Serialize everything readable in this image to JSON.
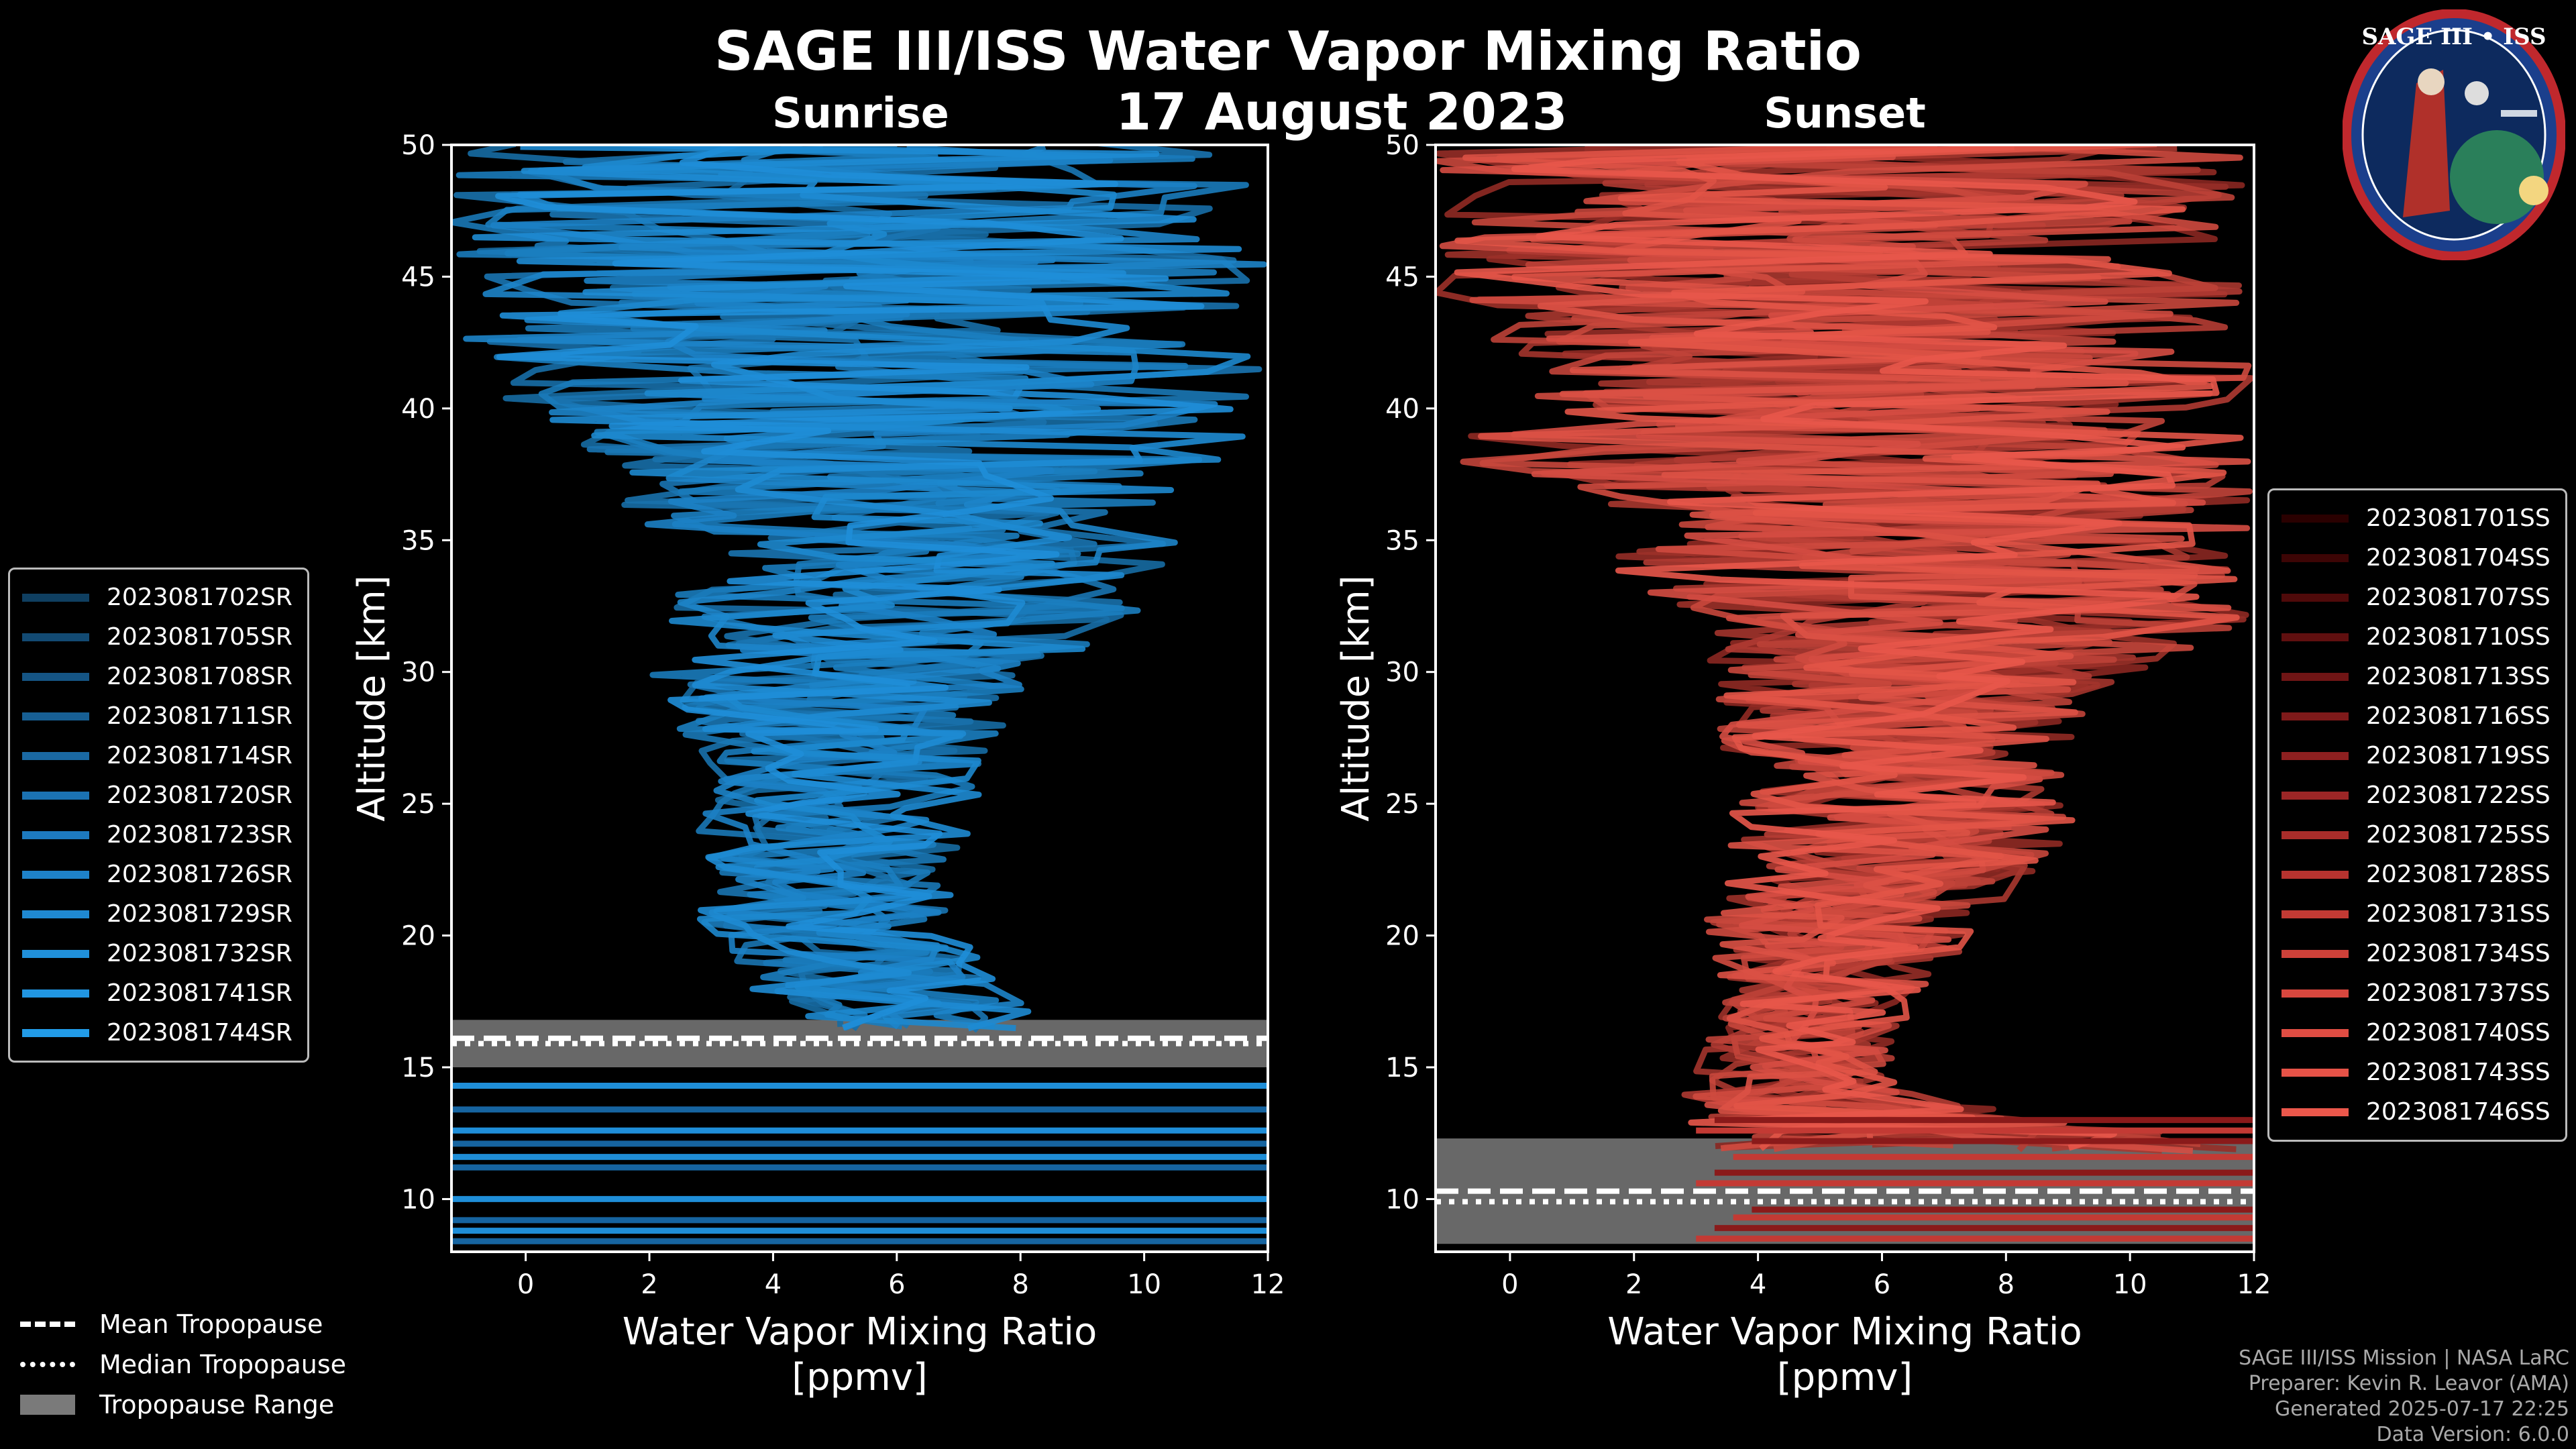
{
  "title": "SAGE III/ISS Water Vapor Mixing Ratio",
  "date": "17 August 2023",
  "logo": {
    "text": "SAGE III • ISS",
    "colors": [
      "#1b3f8c",
      "#c0282d",
      "#ffffff"
    ]
  },
  "legend_tropopause": {
    "mean": "Mean Tropopause",
    "median": "Median Tropopause",
    "range": "Tropopause Range"
  },
  "credits": {
    "line1": "SAGE III/ISS Mission | NASA LaRC",
    "line2": "Preparer: Kevin R. Leavor (AMA)",
    "line3": "Generated 2025-07-17 22:25",
    "line4": "Data Version: 6.0.0"
  },
  "chart_data": [
    {
      "type": "line",
      "title": "Sunrise",
      "xlabel": "Water Vapor Mixing Ratio\n[ppmv]",
      "xlabel_line1": "Water Vapor Mixing Ratio",
      "xlabel_line2": "[ppmv]",
      "ylabel": "Altitude [km]",
      "xlim": [
        -1.2,
        12
      ],
      "ylim": [
        8,
        50
      ],
      "xticks": [
        0,
        2,
        4,
        6,
        8,
        10,
        12
      ],
      "yticks": [
        10,
        15,
        20,
        25,
        30,
        35,
        40,
        45,
        50
      ],
      "color": "#1f8ed8",
      "tropopause": {
        "mean": 16.1,
        "median": 15.9,
        "range": [
          15.0,
          16.8
        ]
      },
      "profile_envelope": [
        {
          "alt": 16.5,
          "min": 4.8,
          "max": 8.8
        },
        {
          "alt": 18,
          "min": 3.6,
          "max": 7.8
        },
        {
          "alt": 20,
          "min": 2.5,
          "max": 7.0
        },
        {
          "alt": 22,
          "min": 2.9,
          "max": 7.0
        },
        {
          "alt": 24,
          "min": 2.5,
          "max": 7.2
        },
        {
          "alt": 26,
          "min": 3.0,
          "max": 7.4
        },
        {
          "alt": 28,
          "min": 2.4,
          "max": 7.8
        },
        {
          "alt": 30,
          "min": 2.0,
          "max": 8.6
        },
        {
          "alt": 32,
          "min": 2.2,
          "max": 9.8
        },
        {
          "alt": 34,
          "min": 2.5,
          "max": 10.4
        },
        {
          "alt": 36,
          "min": 1.7,
          "max": 10.6
        },
        {
          "alt": 38,
          "min": 1.0,
          "max": 11.2
        },
        {
          "alt": 40,
          "min": -0.4,
          "max": 12.0
        },
        {
          "alt": 43,
          "min": -1.2,
          "max": 12.0
        },
        {
          "alt": 50,
          "min": -1.2,
          "max": 12.0
        }
      ],
      "series": [
        {
          "name": "2023081702SR"
        },
        {
          "name": "2023081705SR"
        },
        {
          "name": "2023081708SR"
        },
        {
          "name": "2023081711SR"
        },
        {
          "name": "2023081714SR"
        },
        {
          "name": "2023081720SR"
        },
        {
          "name": "2023081723SR"
        },
        {
          "name": "2023081726SR"
        },
        {
          "name": "2023081729SR"
        },
        {
          "name": "2023081732SR"
        },
        {
          "name": "2023081741SR"
        },
        {
          "name": "2023081744SR"
        }
      ],
      "legend_colors": [
        "#0f3f61",
        "#124a73",
        "#155585",
        "#175f94",
        "#1a69a3",
        "#1b72b2",
        "#1d7abf",
        "#1e82c9",
        "#1f89d2",
        "#2090da",
        "#2196e2",
        "#229ce8"
      ]
    },
    {
      "type": "line",
      "title": "Sunset",
      "xlabel": "Water Vapor Mixing Ratio\n[ppmv]",
      "xlabel_line1": "Water Vapor Mixing Ratio",
      "xlabel_line2": "[ppmv]",
      "ylabel": "Altitude [km]",
      "xlim": [
        -1.2,
        12
      ],
      "ylim": [
        8,
        50
      ],
      "xticks": [
        0,
        2,
        4,
        6,
        8,
        10,
        12
      ],
      "yticks": [
        10,
        15,
        20,
        25,
        30,
        35,
        40,
        45,
        50
      ],
      "color": "#e8574a",
      "tropopause": {
        "mean": 10.3,
        "median": 9.9,
        "range": [
          8.3,
          12.3
        ]
      },
      "profile_envelope": [
        {
          "alt": 12,
          "min": 3.0,
          "max": 12.0
        },
        {
          "alt": 14,
          "min": 2.8,
          "max": 6.5
        },
        {
          "alt": 16,
          "min": 3.2,
          "max": 6.2
        },
        {
          "alt": 18,
          "min": 3.5,
          "max": 6.8
        },
        {
          "alt": 20,
          "min": 3.0,
          "max": 7.5
        },
        {
          "alt": 22,
          "min": 3.5,
          "max": 8.2
        },
        {
          "alt": 24,
          "min": 3.5,
          "max": 9.2
        },
        {
          "alt": 26,
          "min": 3.8,
          "max": 9.0
        },
        {
          "alt": 28,
          "min": 2.9,
          "max": 9.2
        },
        {
          "alt": 30,
          "min": 3.2,
          "max": 10.4
        },
        {
          "alt": 32,
          "min": 2.9,
          "max": 12.0
        },
        {
          "alt": 34,
          "min": 1.5,
          "max": 12.0
        },
        {
          "alt": 36,
          "min": 2.4,
          "max": 12.0
        },
        {
          "alt": 38,
          "min": -1.2,
          "max": 12.0
        },
        {
          "alt": 41,
          "min": 0.5,
          "max": 12.0
        },
        {
          "alt": 44,
          "min": -1.2,
          "max": 12.0
        },
        {
          "alt": 50,
          "min": -1.2,
          "max": 12.0
        }
      ],
      "series": [
        {
          "name": "2023081701SS"
        },
        {
          "name": "2023081704SS"
        },
        {
          "name": "2023081707SS"
        },
        {
          "name": "2023081710SS"
        },
        {
          "name": "2023081713SS"
        },
        {
          "name": "2023081716SS"
        },
        {
          "name": "2023081719SS"
        },
        {
          "name": "2023081722SS"
        },
        {
          "name": "2023081725SS"
        },
        {
          "name": "2023081728SS"
        },
        {
          "name": "2023081731SS"
        },
        {
          "name": "2023081734SS"
        },
        {
          "name": "2023081737SS"
        },
        {
          "name": "2023081740SS"
        },
        {
          "name": "2023081743SS"
        },
        {
          "name": "2023081746SS"
        }
      ],
      "legend_colors": [
        "#2a0000",
        "#3d0505",
        "#4f0a0a",
        "#600f0f",
        "#701515",
        "#7f1a1a",
        "#8e2020",
        "#9c2626",
        "#aa2d2a",
        "#b7332f",
        "#c33a34",
        "#ce4139",
        "#d8473e",
        "#e04d43",
        "#e65247",
        "#eb574b"
      ]
    }
  ]
}
